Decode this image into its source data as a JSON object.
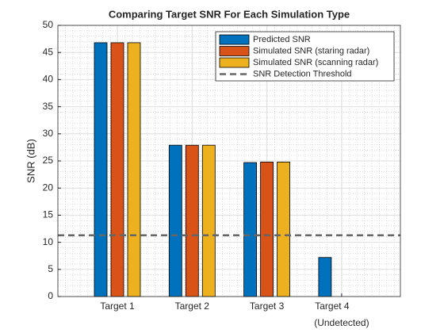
{
  "chart_data": {
    "type": "bar",
    "title": "Comparing Target SNR For Each Simulation Type",
    "y_label": "SNR (dB)",
    "categories": [
      [
        "Target 1"
      ],
      [
        "Target 2"
      ],
      [
        "Target 3"
      ],
      [
        "Target  4",
        "(Undetected)"
      ]
    ],
    "series": [
      {
        "name": "Predicted SNR",
        "color": "#0072bd",
        "values": [
          46.8,
          27.9,
          24.7,
          7.2
        ]
      },
      {
        "name": "Simulated SNR (staring radar)",
        "color": "#d95319",
        "values": [
          46.8,
          27.9,
          24.8,
          null
        ]
      },
      {
        "name": "Simulated SNR (scanning radar)",
        "color": "#edb120",
        "values": [
          46.8,
          27.9,
          24.8,
          null
        ]
      }
    ],
    "threshold": {
      "name": "SNR Detection Threshold",
      "value": 11.3,
      "color": "#666666"
    },
    "ylim": [
      0,
      50
    ],
    "yticks": [
      0,
      5,
      10,
      15,
      20,
      25,
      30,
      35,
      40,
      45,
      50
    ],
    "grid": true,
    "minor_grid": true,
    "legend": "northeast"
  }
}
